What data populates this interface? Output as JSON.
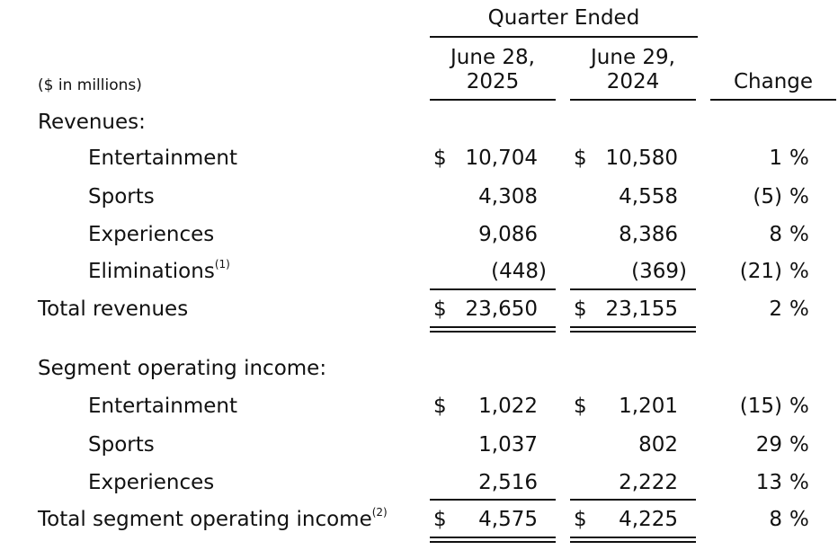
{
  "header": {
    "period_group": "Quarter Ended",
    "col1": [
      "June 28,",
      "2025"
    ],
    "col2": [
      "June 29,",
      "2024"
    ],
    "change": "Change",
    "units": "($ in millions)"
  },
  "revenues": {
    "section_label": "Revenues:",
    "rows": [
      {
        "label": "Entertainment",
        "sup": "",
        "dollar1": "$",
        "v1": "10,704",
        "dollar2": "$",
        "v2": "10,580",
        "change": "1",
        "pct": "%"
      },
      {
        "label": "Sports",
        "sup": "",
        "dollar1": "",
        "v1": "4,308",
        "dollar2": "",
        "v2": "4,558",
        "change": "(5)",
        "pct": "%"
      },
      {
        "label": "Experiences",
        "sup": "",
        "dollar1": "",
        "v1": "9,086",
        "dollar2": "",
        "v2": "8,386",
        "change": "8",
        "pct": "%"
      },
      {
        "label": "Eliminations",
        "sup": "(1)",
        "dollar1": "",
        "v1": "(448)",
        "dollar2": "",
        "v2": "(369)",
        "change": "(21)",
        "pct": "%"
      }
    ],
    "total": {
      "label": "Total revenues",
      "dollar1": "$",
      "v1": "23,650",
      "dollar2": "$",
      "v2": "23,155",
      "change": "2",
      "pct": "%"
    }
  },
  "segment_income": {
    "section_label": "Segment operating income:",
    "rows": [
      {
        "label": "Entertainment",
        "sup": "",
        "dollar1": "$",
        "v1": "1,022",
        "dollar2": "$",
        "v2": "1,201",
        "change": "(15)",
        "pct": "%"
      },
      {
        "label": "Sports",
        "sup": "",
        "dollar1": "",
        "v1": "1,037",
        "dollar2": "",
        "v2": "802",
        "change": "29",
        "pct": "%"
      },
      {
        "label": "Experiences",
        "sup": "",
        "dollar1": "",
        "v1": "2,516",
        "dollar2": "",
        "v2": "2,222",
        "change": "13",
        "pct": "%"
      }
    ],
    "total": {
      "label": "Total segment operating income",
      "sup": "(2)",
      "dollar1": "$",
      "v1": "4,575",
      "dollar2": "$",
      "v2": "4,225",
      "change": "8",
      "pct": "%"
    }
  }
}
